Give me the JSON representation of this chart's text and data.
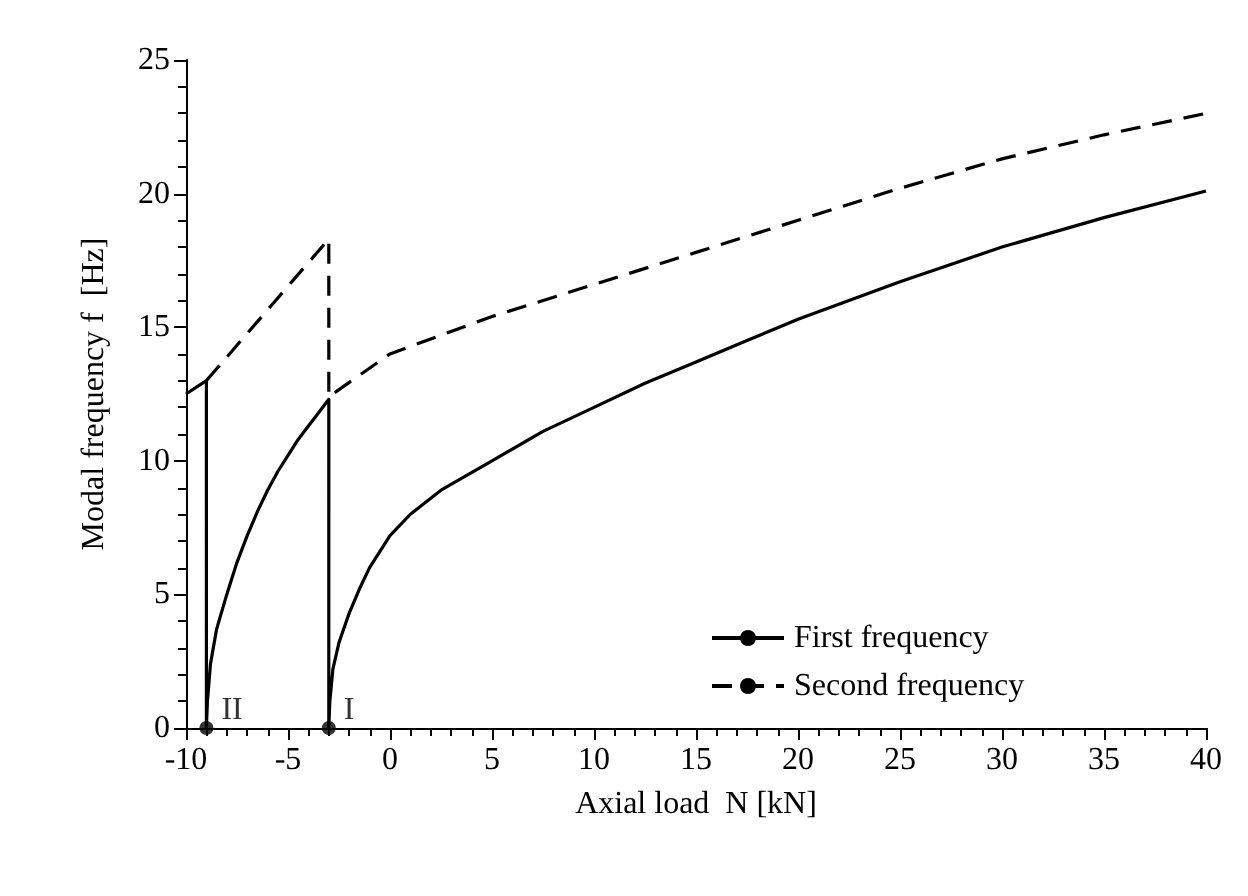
{
  "chart_data": {
    "type": "line",
    "xlabel": "Axial load  N [kN]",
    "ylabel": "Modal frequency f  [Hz]",
    "xlim": [
      -10,
      40
    ],
    "xticks": [
      -10,
      -5,
      0,
      5,
      10,
      15,
      20,
      25,
      30,
      35,
      40
    ],
    "ylim": [
      0,
      25
    ],
    "yticks": [
      0,
      5,
      10,
      15,
      20,
      25
    ],
    "grid": false,
    "legend": "bottom right",
    "marker": "none",
    "series": [
      {
        "name": "First frequency",
        "color": "#000000",
        "line_style": "solid",
        "x": [
          -10,
          -9,
          -9,
          -8.95,
          -8.8,
          -8.5,
          -8,
          -7.5,
          -7,
          -6.5,
          -6,
          -5.5,
          -5,
          -4.5,
          -4,
          -3.5,
          -3,
          -3,
          -2.95,
          -2.8,
          -2.5,
          -2,
          -1.5,
          -1,
          0,
          1,
          2.5,
          5,
          7.5,
          10,
          12.5,
          15,
          17.5,
          20,
          25,
          30,
          35,
          40
        ],
        "values": [
          12.5,
          13.0,
          0,
          1.0,
          2.4,
          3.7,
          5.0,
          6.2,
          7.2,
          8.1,
          8.9,
          9.6,
          10.2,
          10.8,
          11.3,
          11.8,
          12.3,
          0,
          1.0,
          2.2,
          3.2,
          4.3,
          5.2,
          6.0,
          7.2,
          8.0,
          8.9,
          10.0,
          11.1,
          12.0,
          12.9,
          13.7,
          14.5,
          15.3,
          16.7,
          18.0,
          19.1,
          20.1
        ]
      },
      {
        "name": "Second frequency",
        "color": "#000000",
        "line_style": "dashed",
        "x": [
          -9,
          -3,
          -3,
          0,
          5,
          10,
          15,
          20,
          25,
          30,
          35,
          40
        ],
        "values": [
          13.0,
          18.3,
          12.4,
          14.0,
          15.4,
          16.6,
          17.8,
          19.0,
          20.2,
          21.3,
          22.2,
          23.0
        ]
      }
    ],
    "annotations": [
      {
        "text": "II",
        "x": -9,
        "y": 0
      },
      {
        "text": "I",
        "x": -3,
        "y": 0
      }
    ]
  }
}
